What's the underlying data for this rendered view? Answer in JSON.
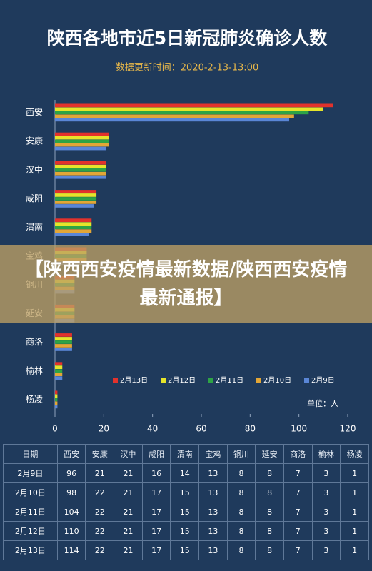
{
  "chart_data": {
    "type": "hbar",
    "title": "陕西各地市近5日新冠肺炎确诊人数",
    "subtitle": "数据更新时间：2020-2-13-13:00",
    "unit_label": "单位：人",
    "categories": [
      "西安",
      "安康",
      "汉中",
      "咸阳",
      "渭南",
      "宝鸡",
      "铜川",
      "延安",
      "商洛",
      "榆林",
      "杨凌"
    ],
    "series": [
      {
        "name": "2月13日",
        "color": "#e2322c",
        "values": [
          114,
          22,
          21,
          17,
          15,
          13,
          8,
          8,
          7,
          3,
          1
        ]
      },
      {
        "name": "2月12日",
        "color": "#e6e42a",
        "values": [
          110,
          22,
          21,
          17,
          15,
          13,
          8,
          8,
          7,
          3,
          1
        ]
      },
      {
        "name": "2月11日",
        "color": "#2ea345",
        "values": [
          104,
          22,
          21,
          17,
          15,
          13,
          8,
          8,
          7,
          3,
          1
        ]
      },
      {
        "name": "2月10日",
        "color": "#e3a636",
        "values": [
          98,
          22,
          21,
          17,
          15,
          13,
          8,
          8,
          7,
          3,
          1
        ]
      },
      {
        "name": "2月9日",
        "color": "#5a86d6",
        "values": [
          96,
          21,
          21,
          16,
          14,
          13,
          8,
          8,
          7,
          3,
          1
        ]
      }
    ],
    "xlim": [
      0,
      120
    ],
    "xticks": [
      0,
      20,
      40,
      60,
      80,
      100,
      120
    ],
    "grid": false
  },
  "table": {
    "first_header": "日期"
  },
  "banner": {
    "text": "【陕西西安疫情最新数据/陕西西安疫情最新通报】"
  }
}
